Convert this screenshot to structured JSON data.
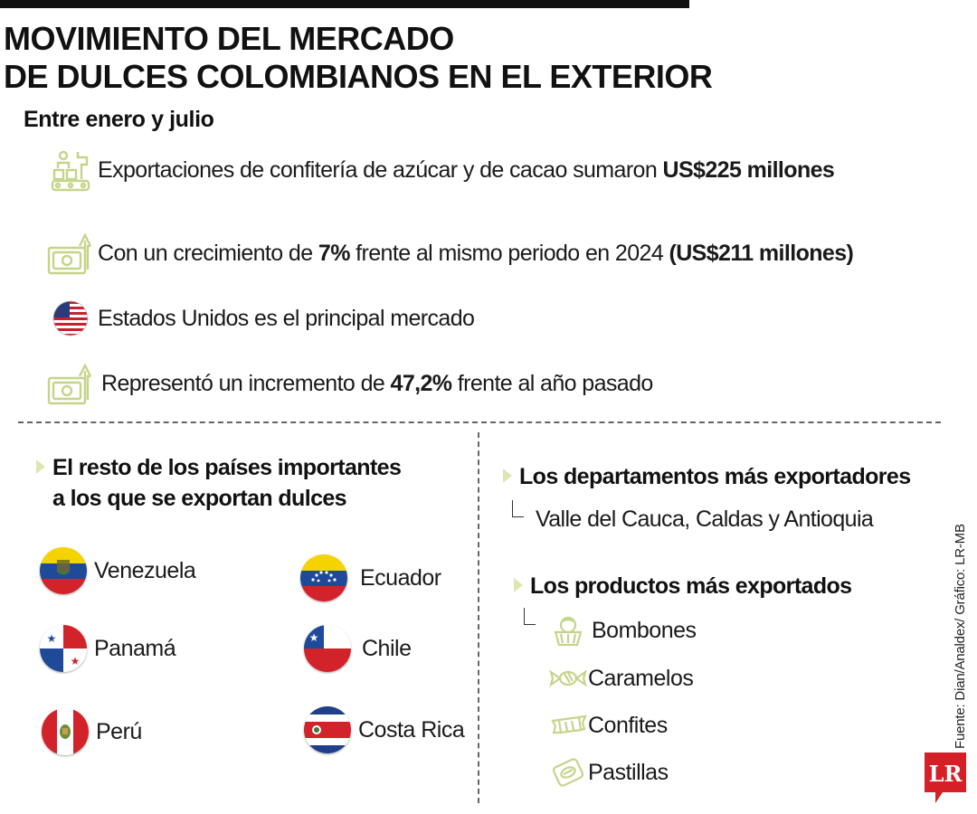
{
  "header": {
    "title_line1": "MOVIMIENTO DEL MERCADO",
    "title_line2": "DE DULCES COLOMBIANOS EN EL EXTERIOR",
    "subtitle": "Entre enero y julio"
  },
  "stats": [
    {
      "icon": "factory-icon",
      "pre": "Exportaciones de confitería de azúcar y de cacao sumaron ",
      "b1": "US$225 millones",
      "mid": "",
      "b2": "",
      "post": ""
    },
    {
      "icon": "money-growth-icon",
      "pre": "Con un crecimiento de ",
      "b1": "7%",
      "mid": " frente al mismo periodo en 2024 ",
      "b2": "(US$211 millones)",
      "post": ""
    },
    {
      "icon": "us-flag-icon",
      "pre": "Estados Unidos es el principal mercado",
      "b1": "",
      "mid": "",
      "b2": "",
      "post": ""
    },
    {
      "icon": "money-growth-icon",
      "pre": "Representó un incremento de ",
      "b1": "47,2%",
      "mid": "",
      "b2": "",
      "post": " frente al año pasado"
    }
  ],
  "countries_section": {
    "heading_line1": "El resto de los países importantes",
    "heading_line2": "a los que se exportan dulces",
    "countries": [
      {
        "name": "Venezuela",
        "flag": "venezuela-flag-icon"
      },
      {
        "name": "Ecuador",
        "flag": "ecuador-flag-icon"
      },
      {
        "name": "Panamá",
        "flag": "panama-flag-icon"
      },
      {
        "name": "Chile",
        "flag": "chile-flag-icon"
      },
      {
        "name": "Perú",
        "flag": "peru-flag-icon"
      },
      {
        "name": "Costa Rica",
        "flag": "costa-rica-flag-icon"
      }
    ]
  },
  "departments_section": {
    "heading": "Los departamentos más exportadores",
    "text": "Valle del Cauca, Caldas y Antioquia"
  },
  "products_section": {
    "heading": "Los productos más exportados",
    "items": [
      {
        "name": "Bombones",
        "icon": "bonbon-icon"
      },
      {
        "name": "Caramelos",
        "icon": "wrapped-candy-icon"
      },
      {
        "name": "Confites",
        "icon": "candy-bar-icon"
      },
      {
        "name": "Pastillas",
        "icon": "lozenge-icon"
      }
    ]
  },
  "footer": {
    "source": "Fuente: Dian/Analdex/ Gráfico: LR-MB",
    "logo": "LR"
  },
  "colors": {
    "icon_green": "#c5d48a",
    "accent_logo": "#d62027",
    "text": "#1a1a1a"
  }
}
